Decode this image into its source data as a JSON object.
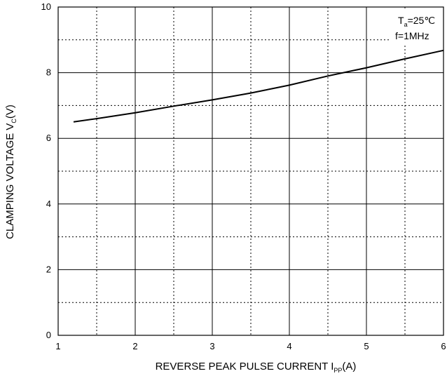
{
  "chart_data": {
    "type": "line",
    "xlabel": {
      "main": "REVERSE PEAK PULSE CURRENT  I",
      "sub": "PP",
      "tail": "(A)"
    },
    "ylabel": {
      "main": "CLAMPING VOLTAGE  V",
      "sub": "C",
      "tail": "(V)"
    },
    "xlim": [
      1,
      6
    ],
    "ylim": [
      0,
      10
    ],
    "x_ticks": [
      1,
      2,
      3,
      4,
      5,
      6
    ],
    "x_tick_labels": [
      "1",
      "2",
      "3",
      "4",
      "5",
      "6"
    ],
    "y_ticks": [
      0,
      2,
      4,
      6,
      8,
      10
    ],
    "y_tick_labels": [
      "0",
      "2",
      "4",
      "6",
      "8",
      "10"
    ],
    "grid": "solid major gridlines at integer x and even y; dotted minor gridlines at half-integer x and odd y",
    "series": [
      {
        "x": [
          1.2,
          1.5,
          2.0,
          2.5,
          3.0,
          3.5,
          4.0,
          4.5,
          5.0,
          5.5,
          6.0
        ],
        "y": [
          6.5,
          6.6,
          6.78,
          6.98,
          7.17,
          7.38,
          7.62,
          7.9,
          8.15,
          8.42,
          8.68
        ]
      }
    ],
    "annotations": [
      {
        "main": "T",
        "sub": "a",
        "tail": "=25℃"
      },
      {
        "text": "f=1MHz"
      }
    ]
  }
}
